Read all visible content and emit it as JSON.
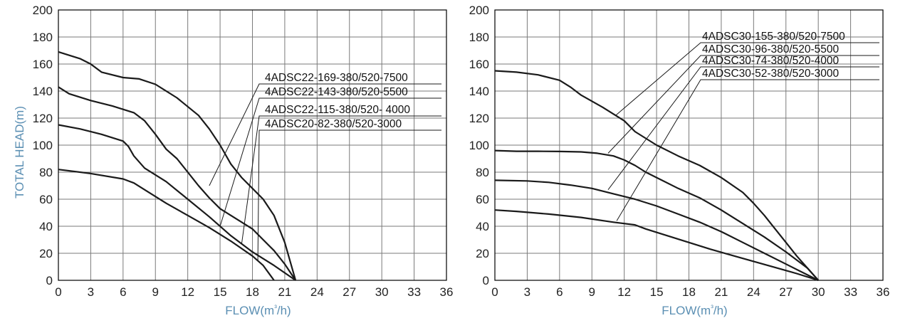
{
  "chart_data": [
    {
      "type": "line",
      "title": "",
      "xlabel": "FLOW(m³/h)",
      "ylabel": "TOTAL HEAD(m)",
      "xlim": [
        0,
        36
      ],
      "ylim": [
        0,
        200
      ],
      "xticks": [
        0,
        3,
        6,
        9,
        12,
        15,
        18,
        21,
        24,
        27,
        30,
        33,
        36
      ],
      "yticks": [
        0,
        20,
        40,
        60,
        80,
        100,
        120,
        140,
        160,
        180,
        200
      ],
      "grid": true,
      "series": [
        {
          "name": "4ADSC22-169-380/520-7500",
          "x": [
            0,
            2,
            3,
            4,
            6,
            7.5,
            9,
            11,
            13,
            14,
            15,
            16,
            17,
            18,
            19,
            20,
            21,
            22
          ],
          "y": [
            169,
            164,
            160,
            154,
            150,
            149,
            145,
            135,
            122,
            112,
            100,
            86,
            76,
            68,
            60,
            48,
            28,
            0
          ]
        },
        {
          "name": "4ADSC22-143-380/520-5500",
          "x": [
            0,
            1,
            3,
            5,
            7,
            8,
            9,
            10,
            11,
            12,
            13,
            14,
            15,
            16,
            17,
            18,
            19,
            20,
            21,
            22
          ],
          "y": [
            143,
            138,
            133,
            129,
            124,
            118,
            108,
            97,
            90,
            80,
            70,
            61,
            53,
            48,
            43,
            38,
            30,
            22,
            12,
            0
          ]
        },
        {
          "name": "4ADSC22-115-380/520- 4000",
          "x": [
            0,
            2,
            4,
            6,
            6.5,
            7,
            8,
            10,
            12,
            14,
            16,
            18,
            20,
            22
          ],
          "y": [
            115,
            112,
            108,
            103,
            99,
            92,
            83,
            73,
            60,
            47,
            33,
            21,
            11,
            0
          ]
        },
        {
          "name": "4ADSC20-82-380/520-3000",
          "x": [
            0,
            3,
            6,
            7,
            8,
            10,
            12,
            14,
            16,
            18,
            19,
            20
          ],
          "y": [
            82,
            79,
            75,
            72,
            67,
            57,
            48,
            39,
            29,
            18,
            11,
            0
          ]
        }
      ],
      "legend": "top-right"
    },
    {
      "type": "line",
      "title": "",
      "xlabel": "FLOW(m³/h)",
      "ylabel": "",
      "xlim": [
        0,
        36
      ],
      "ylim": [
        0,
        200
      ],
      "xticks": [
        0,
        3,
        6,
        9,
        12,
        15,
        18,
        21,
        24,
        27,
        30,
        33,
        36
      ],
      "yticks": [
        0,
        20,
        40,
        60,
        80,
        100,
        120,
        140,
        160,
        180,
        200
      ],
      "grid": true,
      "series": [
        {
          "name": "4ADSC30-155-380/520-7500",
          "x": [
            0,
            2,
            4,
            6,
            7,
            8,
            10,
            12,
            13,
            15,
            17,
            19,
            21,
            23,
            24,
            25,
            26,
            27,
            28,
            29,
            30
          ],
          "y": [
            155,
            154,
            152,
            148,
            143,
            137,
            128,
            118,
            110,
            100,
            92,
            85,
            76,
            65,
            57,
            48,
            38,
            28,
            18,
            9,
            0
          ]
        },
        {
          "name": "4ADSC30-96-380/520-5500",
          "x": [
            0,
            2,
            4,
            6,
            8,
            9.5,
            11,
            12,
            13,
            14,
            15,
            17,
            19,
            21,
            23,
            25,
            27,
            29,
            30
          ],
          "y": [
            96,
            95.5,
            95.5,
            95.3,
            95,
            94,
            92,
            89,
            85,
            80,
            76,
            68,
            61,
            52,
            42,
            32,
            21,
            9,
            0
          ]
        },
        {
          "name": "4ADSC30-74-380/520-4000",
          "x": [
            0,
            3,
            5,
            7,
            9,
            11,
            13,
            15,
            17,
            19,
            21,
            23,
            25,
            27,
            29,
            30
          ],
          "y": [
            74,
            73.5,
            72.5,
            70.5,
            68,
            64,
            60,
            55,
            49,
            43,
            36,
            28,
            20,
            12,
            4,
            0
          ]
        },
        {
          "name": "4ADSC30-52-380/520-3000",
          "x": [
            0,
            2,
            5,
            8,
            11,
            13,
            14,
            16,
            18,
            20,
            22,
            24,
            26,
            28,
            30
          ],
          "y": [
            52,
            51,
            49,
            46.5,
            43,
            41,
            38,
            33,
            28,
            23,
            18.5,
            14,
            9.5,
            5,
            0
          ]
        }
      ],
      "legend": "top-right"
    }
  ]
}
